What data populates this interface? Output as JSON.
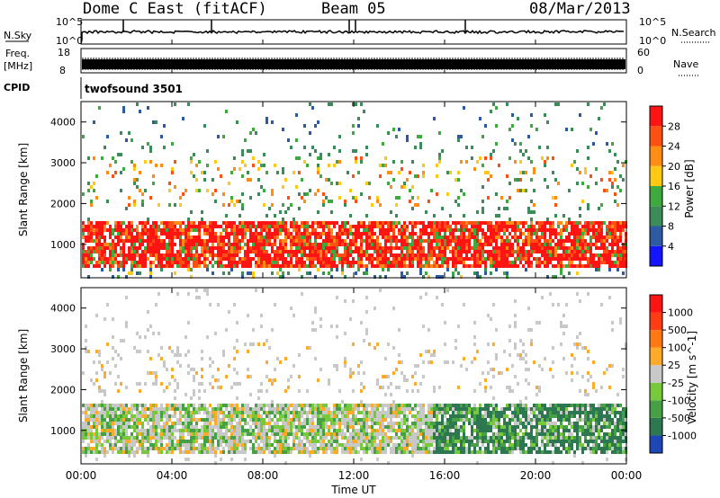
{
  "header": {
    "radar": "Dome C East (fitACF)",
    "beam": "Beam 05",
    "date": "08/Mar/2013"
  },
  "top_panels": {
    "nsky_label": "N.Sky",
    "nsky_ticks": [
      "10^5",
      "10^0"
    ],
    "nsky_right_ticks": [
      "10^5",
      "10^0"
    ],
    "nsearch_label": "N.Search",
    "freq_label_1": "Freq.",
    "freq_label_2": "[MHz]",
    "freq_ticks": [
      "18",
      "8"
    ],
    "nave_ticks": [
      "60",
      "0"
    ],
    "nave_label": "Nave",
    "cpid_label": "CPID",
    "cpid_value": "twofsound 3501"
  },
  "chart_data": [
    {
      "type": "heatmap",
      "name": "power-panel",
      "ylabel": "Slant Range [km]",
      "y_ticks": [
        "1000",
        "2000",
        "3000",
        "4000"
      ],
      "ylim": [
        180,
        4500
      ],
      "colorbar_label": "Power [dB]",
      "colorbar_ticks": [
        "4",
        "8",
        "12",
        "16",
        "20",
        "24",
        "28"
      ],
      "colors": [
        "#1414ff",
        "#2d5aa0",
        "#3c8c5a",
        "#3caa3c",
        "#ffc814",
        "#ff8c14",
        "#ff5014",
        "#ff1414"
      ],
      "bands": [
        {
          "from": 450,
          "to": 1600,
          "level": "strong"
        },
        {
          "from": 2000,
          "to": 3200,
          "level": "weak"
        },
        {
          "from": 3500,
          "to": 4400,
          "level": "sparse"
        }
      ]
    },
    {
      "type": "heatmap",
      "name": "velocity-panel",
      "ylabel": "Slant Range [km]",
      "y_ticks": [
        "1000",
        "2000",
        "3000",
        "4000"
      ],
      "ylim": [
        180,
        4500
      ],
      "colorbar_label": "Velocity [m s^-1]",
      "colorbar_ticks": [
        "1000",
        "500",
        "100",
        "25",
        "-25",
        "-100",
        "-500",
        "-1000"
      ],
      "colors": [
        "#1e46b4",
        "#2d7850",
        "#46a046",
        "#78c83c",
        "#c8c8c8",
        "#ffaa28",
        "#ff7814",
        "#ff3c14",
        "#ff1414"
      ]
    }
  ],
  "time_axis": {
    "label": "Time UT",
    "ticks": [
      "00:00",
      "04:00",
      "08:00",
      "12:00",
      "16:00",
      "20:00",
      "00:00"
    ]
  }
}
